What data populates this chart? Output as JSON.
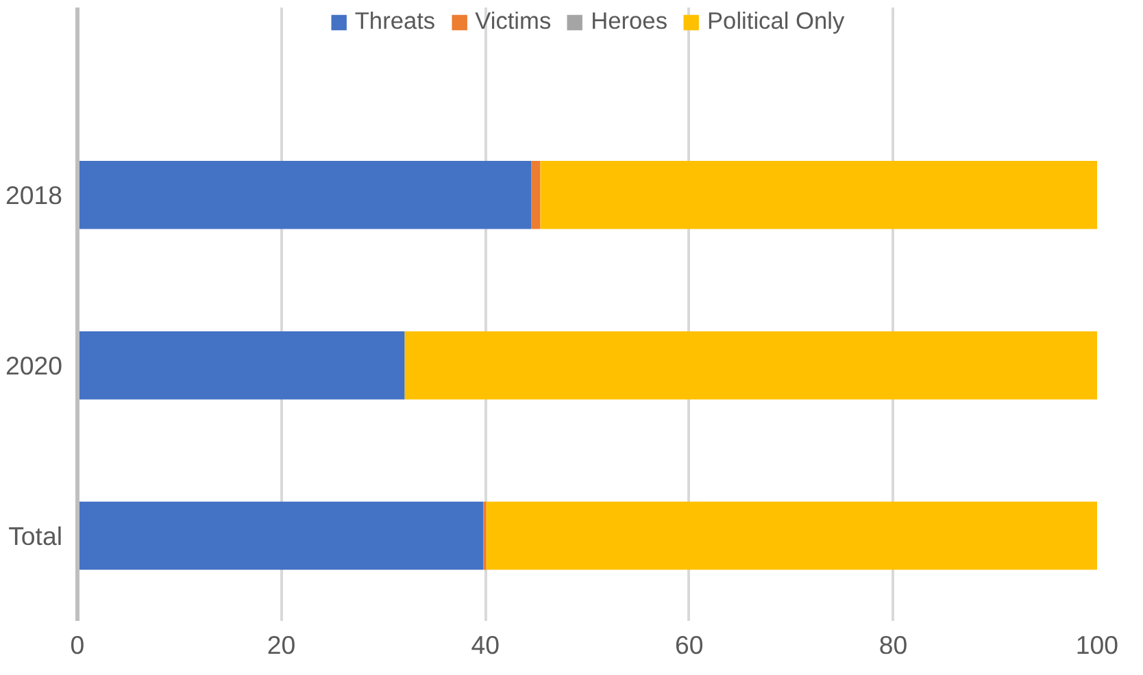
{
  "chart_data": {
    "type": "bar",
    "orientation": "horizontal",
    "stacked": true,
    "categories": [
      "2018",
      "2020",
      "Total"
    ],
    "series": [
      {
        "name": "Threats",
        "color": "#4472c4",
        "values": [
          44.5,
          32.1,
          39.8
        ]
      },
      {
        "name": "Victims",
        "color": "#ed7d31",
        "values": [
          0.9,
          0,
          0.3
        ]
      },
      {
        "name": "Heroes",
        "color": "#a5a5a5",
        "values": [
          0,
          0,
          0
        ]
      },
      {
        "name": "Political Only",
        "color": "#ffc000",
        "values": [
          54.6,
          67.9,
          59.9
        ]
      }
    ],
    "xlim": [
      0,
      100
    ],
    "xticks": [
      0,
      20,
      40,
      60,
      80,
      100
    ],
    "grid": "x",
    "legend": "top"
  }
}
